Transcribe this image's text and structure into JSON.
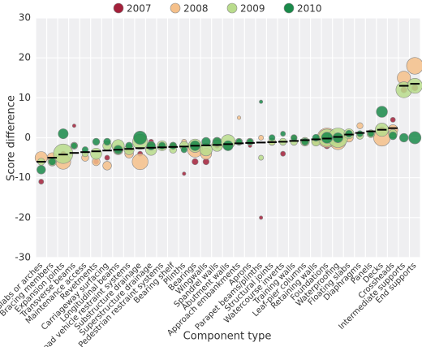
{
  "chart_data": {
    "type": "bubble",
    "x_label": "Component type",
    "y_label": "Score difference",
    "categories": [
      "Slabs or arches",
      "Bracing members",
      "Expansion joints",
      "Transverse beams",
      "Maintenance access",
      "Revetments",
      "Carriageway surfacing",
      "Longitudinal beams",
      "Road vehicle restraint systems",
      "Substructure drainage",
      "Superstructure drainage",
      "Pedestrian restraint systems",
      "Bearing shelf",
      "Plinths",
      "Bearings",
      "Wingwalls",
      "Spandrel walls",
      "Abutment walls",
      "Approach embankments",
      "Aprons",
      "Parapet beams/plinths",
      "Structural joints",
      "Watercourse inverts",
      "Training walls",
      "Leaf-pier columns",
      "Retaining walls",
      "Foundations",
      "Waterproofing",
      "Floating slabs",
      "Diaphragms",
      "Panels",
      "Decks",
      "Crossheads",
      "Intermediate supports",
      "End supports"
    ],
    "ylim": [
      -30,
      30
    ],
    "yticks": [
      -30,
      -20,
      -10,
      0,
      10,
      20,
      30
    ],
    "grid": true,
    "legend": "top",
    "trend_color": "#000000",
    "trend_values": [
      -6,
      -5,
      -4.2,
      -3.8,
      -3.6,
      -3.4,
      -3.2,
      -3,
      -2.8,
      -2.6,
      -2.5,
      -2.4,
      -2.3,
      -2.2,
      -2,
      -1.9,
      -1.8,
      -1.6,
      -1.4,
      -1.3,
      -1.2,
      -1.1,
      -1,
      -0.8,
      -0.6,
      -0.4,
      -0.2,
      0.2,
      0.8,
      1.2,
      1.6,
      2,
      2.4,
      13,
      13.5
    ],
    "series": [
      {
        "name": "2007",
        "color": "#a3203a",
        "values": [
          -11,
          -6,
          -4,
          3,
          null,
          -6,
          -5,
          -3,
          -3,
          -4,
          -1,
          -2,
          -2,
          -9,
          -6,
          -6,
          -2,
          -2,
          null,
          -2,
          -20,
          null,
          -4,
          null,
          null,
          -1,
          -2,
          -1,
          null,
          null,
          null,
          2,
          4.5,
          12,
          12.5
        ],
        "sizes": [
          2,
          2,
          2,
          1,
          null,
          2,
          2,
          2,
          3,
          2,
          2,
          2,
          2,
          1,
          3,
          3,
          2,
          2,
          null,
          1,
          1,
          null,
          2,
          null,
          null,
          2,
          3,
          3,
          null,
          null,
          null,
          3,
          2,
          3,
          3
        ]
      },
      {
        "name": "2008",
        "color": "#f5c08a",
        "values": [
          -5,
          -5,
          -6,
          null,
          -5,
          -6,
          -7,
          -3,
          -4,
          -6,
          -2,
          -2,
          -2,
          -1,
          -3,
          -4,
          -1,
          -2,
          5,
          -1,
          0,
          -1,
          null,
          0,
          -1,
          -1,
          0,
          -1,
          0,
          3,
          1,
          0,
          2,
          15,
          18
        ],
        "sizes": [
          12,
          8,
          18,
          1,
          4,
          5,
          6,
          8,
          6,
          20,
          5,
          4,
          4,
          2,
          18,
          10,
          6,
          6,
          1,
          3,
          2,
          4,
          null,
          3,
          4,
          4,
          30,
          20,
          6,
          3,
          4,
          22,
          8,
          14,
          22
        ]
      },
      {
        "name": "2009",
        "color": "#b9dc8c",
        "values": [
          -6,
          -6,
          -4,
          -2,
          -4,
          -4,
          -2,
          -2,
          -3,
          -1,
          -3,
          -2,
          -3,
          -2,
          -2,
          -3,
          -2,
          -1,
          -1,
          -1,
          -5,
          -1,
          -1,
          -1,
          -1,
          -1,
          0,
          0,
          1,
          0.5,
          1,
          2,
          1,
          12,
          13
        ],
        "sizes": [
          4,
          6,
          30,
          4,
          3,
          10,
          6,
          12,
          8,
          18,
          10,
          8,
          4,
          6,
          14,
          12,
          10,
          16,
          4,
          4,
          2,
          4,
          4,
          4,
          6,
          6,
          24,
          30,
          8,
          4,
          5,
          14,
          6,
          20,
          18
        ]
      },
      {
        "name": "2010",
        "color": "#1a8a4a",
        "values": [
          -8,
          -6,
          1,
          -2,
          -3,
          -1,
          -1,
          -3,
          -2,
          0,
          -2,
          -2,
          -2,
          -3,
          -2,
          -1,
          -1,
          -2,
          -1,
          -1,
          9,
          0,
          1,
          0,
          -1,
          0,
          0,
          0,
          1,
          1,
          1,
          6.5,
          0.5,
          0,
          0
        ],
        "sizes": [
          6,
          4,
          8,
          3,
          3,
          4,
          4,
          6,
          4,
          14,
          6,
          4,
          4,
          3,
          8,
          6,
          6,
          8,
          3,
          3,
          1,
          3,
          2,
          3,
          4,
          4,
          10,
          8,
          4,
          3,
          3,
          10,
          5,
          6,
          12
        ]
      }
    ]
  }
}
